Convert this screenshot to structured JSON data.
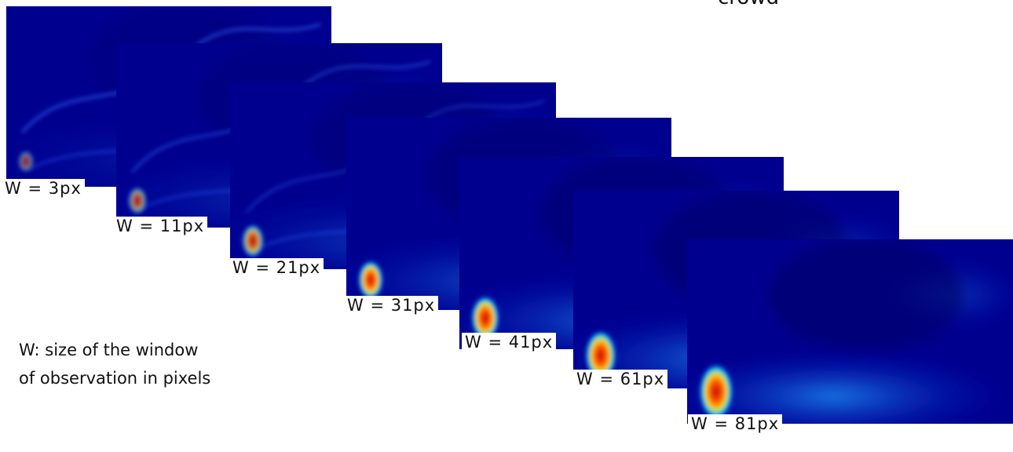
{
  "header": {
    "title_fragment": "crowd"
  },
  "panels": [
    {
      "label": "W = 3px"
    },
    {
      "label": "W = 11px"
    },
    {
      "label": "W = 21px"
    },
    {
      "label": "W = 31px"
    },
    {
      "label": "W = 41px"
    },
    {
      "label": "W = 61px"
    },
    {
      "label": "W = 81px"
    }
  ],
  "caption": {
    "lines": [
      "W: size of the window",
      "of observation in pixels"
    ]
  }
}
